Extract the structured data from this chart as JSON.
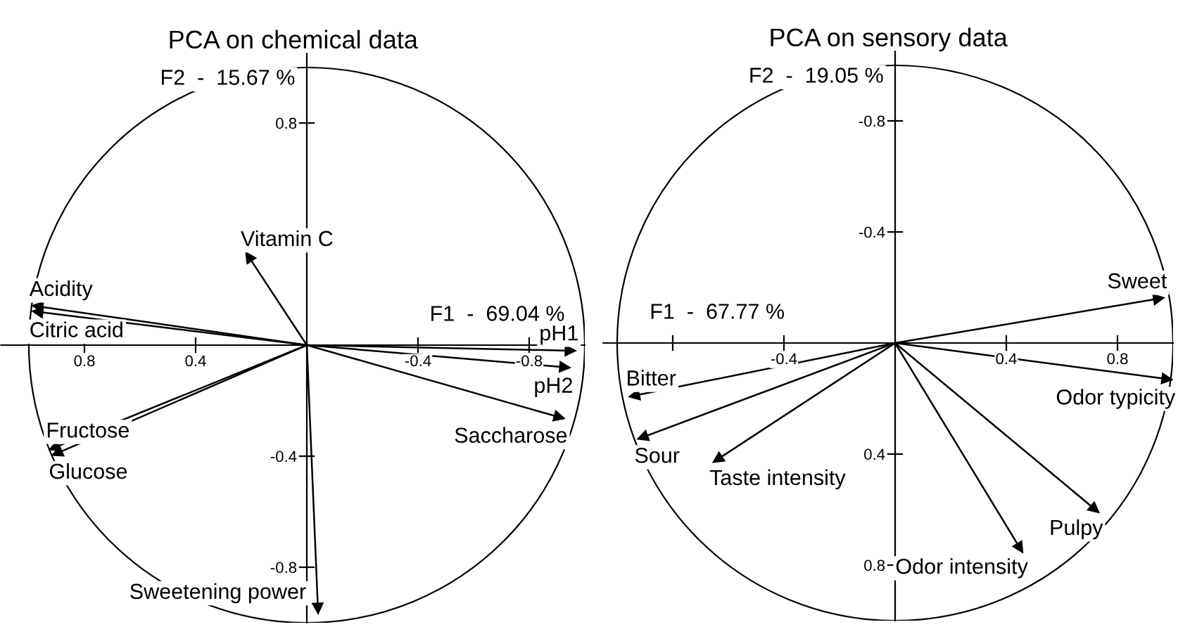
{
  "chart_data": [
    {
      "type": "scatter",
      "title": "PCA on chemical data",
      "xlabel": "F1  -  69.04 %",
      "ylabel": "F2  -  15.67 %",
      "marker": "triangle",
      "grid": false,
      "legend": false,
      "xlim": [
        1.1,
        -1.0
      ],
      "ylim": [
        -1.0,
        1.05
      ],
      "xticks": [
        0.8,
        0.4,
        -0.4,
        -0.8
      ],
      "yticks": [
        0.8,
        {
          "value": 0.4,
          "label": null
        },
        -0.4,
        -0.8
      ],
      "series": [
        {
          "name": "Vitamin C",
          "color": "#000000",
          "x": [
            0.21
          ],
          "values": [
            0.32
          ]
        },
        {
          "name": "Acidity",
          "color": "#000000",
          "x": [
            0.97
          ],
          "values": [
            0.14
          ]
        },
        {
          "name": "Citric acid",
          "color": "#000000",
          "x": [
            0.97
          ],
          "values": [
            0.12
          ]
        },
        {
          "name": "Fructose",
          "color": "#000000",
          "x": [
            0.91
          ],
          "values": [
            -0.37
          ]
        },
        {
          "name": "Glucose",
          "color": "#000000",
          "x": [
            0.9
          ],
          "values": [
            -0.39
          ]
        },
        {
          "name": "pH1",
          "color": "#000000",
          "x": [
            -0.95
          ],
          "values": [
            -0.02
          ]
        },
        {
          "name": "pH2",
          "color": "#000000",
          "x": [
            -0.93
          ],
          "values": [
            -0.08
          ]
        },
        {
          "name": "Saccharose",
          "color": "#000000",
          "x": [
            -0.91
          ],
          "values": [
            -0.26
          ]
        },
        {
          "name": "Sweetening power",
          "color": "#000000",
          "x": [
            -0.04
          ],
          "values": [
            -0.95
          ]
        }
      ]
    },
    {
      "type": "scatter",
      "title": "PCA on sensory data",
      "xlabel": "F1  -  67.77 %",
      "ylabel": "F2  -  19.05 %",
      "marker": "triangle",
      "grid": false,
      "legend": false,
      "xlim": [
        -1.05,
        1.0
      ],
      "ylim": [
        1.0,
        -1.05
      ],
      "xticks": [
        {
          "value": -0.8,
          "label": null
        },
        -0.4,
        0.4,
        0.8
      ],
      "yticks": [
        -0.8,
        -0.4,
        0.4,
        0.8
      ],
      "series": [
        {
          "name": "Sweet",
          "color": "#000000",
          "x": [
            0.95
          ],
          "values": [
            -0.16
          ]
        },
        {
          "name": "Odor typicity",
          "color": "#000000",
          "x": [
            0.98
          ],
          "values": [
            0.13
          ]
        },
        {
          "name": "Pulpy",
          "color": "#000000",
          "x": [
            0.72
          ],
          "values": [
            0.6
          ]
        },
        {
          "name": "Odor intensity",
          "color": "#000000",
          "x": [
            0.45
          ],
          "values": [
            0.74
          ]
        },
        {
          "name": "Taste intensity",
          "color": "#000000",
          "x": [
            -0.64
          ],
          "values": [
            0.42
          ]
        },
        {
          "name": "Sour",
          "color": "#000000",
          "x": [
            -0.91
          ],
          "values": [
            0.34
          ]
        },
        {
          "name": "Bitter",
          "color": "#000000",
          "x": [
            -0.94
          ],
          "values": [
            0.19
          ]
        }
      ]
    }
  ]
}
